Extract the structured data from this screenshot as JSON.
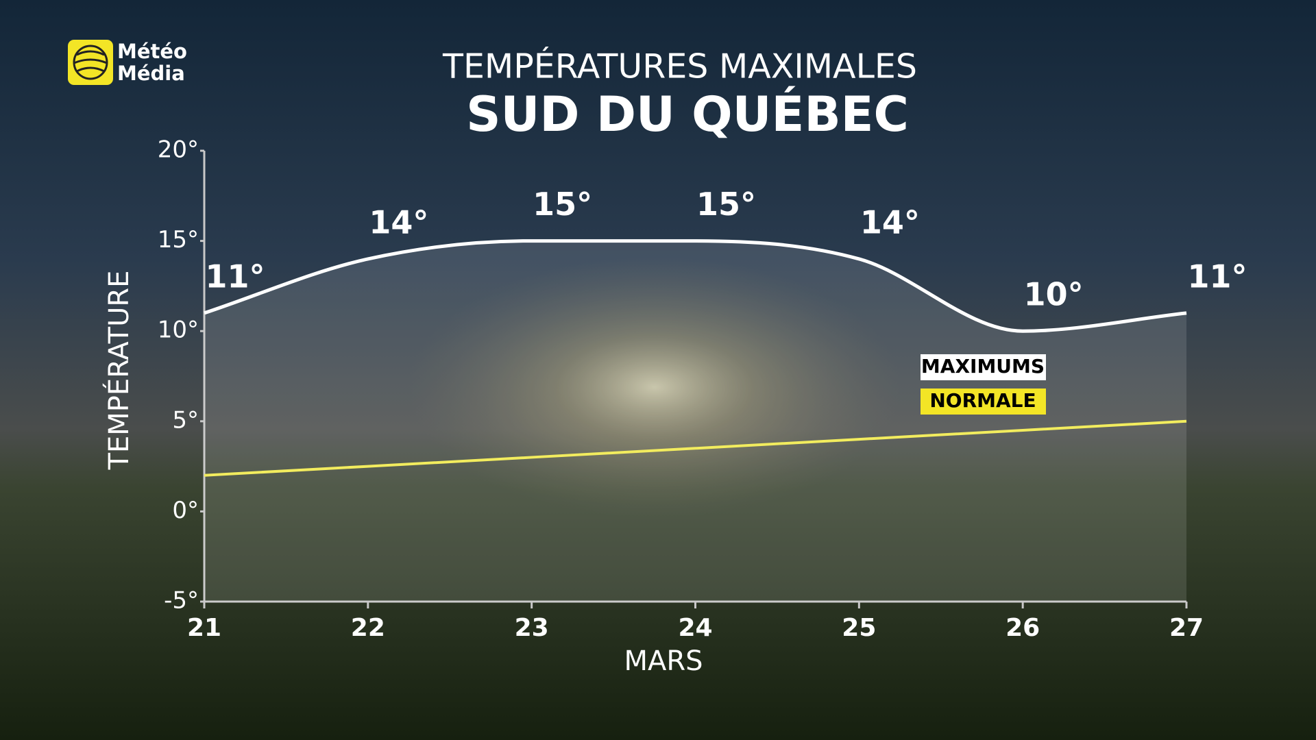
{
  "logo": {
    "line1": "Météo",
    "line2": "Média"
  },
  "chart_data": {
    "type": "line",
    "title": "TEMPÉRATURES MAXIMALES",
    "subtitle": "SUD DU QUÉBEC",
    "x_label": "MARS",
    "y_label": "TEMPÉRATURE",
    "categories": [
      "21",
      "22",
      "23",
      "24",
      "25",
      "26",
      "27"
    ],
    "series": [
      {
        "name": "MAXIMUMS",
        "color": "#ffffff",
        "legend_text_color": "#000000",
        "smooth": true,
        "fill_below": true,
        "values": [
          11,
          14,
          15,
          15,
          14,
          10,
          11
        ],
        "value_labels": [
          "11°",
          "14°",
          "15°",
          "15°",
          "14°",
          "10°",
          "11°"
        ]
      },
      {
        "name": "NORMALE",
        "color": "#f2ec5e",
        "legend_box_color": "#f3e526",
        "legend_text_color": "#000000",
        "smooth": false,
        "values": [
          2,
          2.5,
          3,
          3.5,
          4,
          4.5,
          5
        ]
      }
    ],
    "ylim": [
      -5,
      20
    ],
    "yticks": [
      {
        "value": -5,
        "label": "-5°"
      },
      {
        "value": 0,
        "label": "0°"
      },
      {
        "value": 5,
        "label": "5°"
      },
      {
        "value": 10,
        "label": "10°"
      },
      {
        "value": 15,
        "label": "15°"
      },
      {
        "value": 20,
        "label": "20°"
      }
    ],
    "grid": false
  }
}
